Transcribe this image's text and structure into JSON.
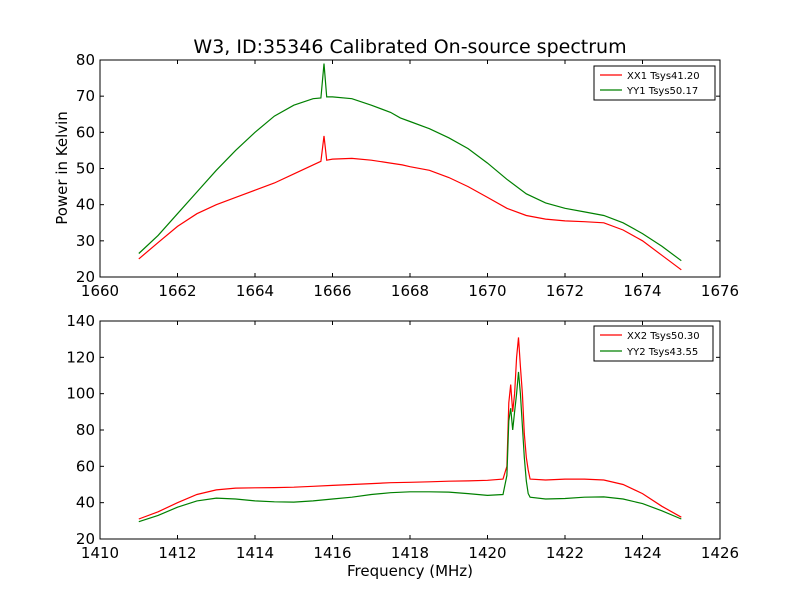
{
  "chart_data": [
    {
      "type": "line",
      "title": "W3, ID:35346 Calibrated On-source spectrum",
      "xlabel": "",
      "ylabel": "Power in Kelvin",
      "xlim": [
        1660,
        1676
      ],
      "ylim": [
        20,
        80
      ],
      "xticks": [
        "1660",
        "1662",
        "1664",
        "1666",
        "1668",
        "1670",
        "1672",
        "1674",
        "1676"
      ],
      "yticks": [
        "20",
        "30",
        "40",
        "50",
        "60",
        "70",
        "80"
      ],
      "legend_position": "top-right",
      "grid": false,
      "series": [
        {
          "name": "XX1 Tsys41.20",
          "color": "#ff0000",
          "points": [
            [
              1661.0,
              25.0
            ],
            [
              1661.5,
              29.5
            ],
            [
              1662.0,
              34.0
            ],
            [
              1662.5,
              37.5
            ],
            [
              1663.0,
              40.0
            ],
            [
              1663.5,
              42.0
            ],
            [
              1664.0,
              44.0
            ],
            [
              1664.5,
              46.0
            ],
            [
              1665.0,
              48.5
            ],
            [
              1665.5,
              51.0
            ],
            [
              1665.7,
              52.0
            ],
            [
              1665.78,
              59.0
            ],
            [
              1665.85,
              52.3
            ],
            [
              1666.0,
              52.6
            ],
            [
              1666.5,
              52.8
            ],
            [
              1667.0,
              52.3
            ],
            [
              1667.5,
              51.5
            ],
            [
              1667.8,
              51.0
            ],
            [
              1668.0,
              50.5
            ],
            [
              1668.5,
              49.5
            ],
            [
              1669.0,
              47.5
            ],
            [
              1669.5,
              45.0
            ],
            [
              1670.0,
              42.0
            ],
            [
              1670.5,
              39.0
            ],
            [
              1671.0,
              37.0
            ],
            [
              1671.5,
              36.0
            ],
            [
              1672.0,
              35.5
            ],
            [
              1672.5,
              35.3
            ],
            [
              1673.0,
              35.0
            ],
            [
              1673.5,
              33.0
            ],
            [
              1674.0,
              30.0
            ],
            [
              1674.5,
              26.0
            ],
            [
              1675.0,
              22.0
            ]
          ]
        },
        {
          "name": "YY1 Tsys50.17",
          "color": "#008000",
          "points": [
            [
              1661.0,
              26.5
            ],
            [
              1661.5,
              31.5
            ],
            [
              1662.0,
              37.5
            ],
            [
              1662.5,
              43.5
            ],
            [
              1663.0,
              49.5
            ],
            [
              1663.5,
              55.0
            ],
            [
              1664.0,
              60.0
            ],
            [
              1664.5,
              64.5
            ],
            [
              1665.0,
              67.5
            ],
            [
              1665.5,
              69.3
            ],
            [
              1665.7,
              69.5
            ],
            [
              1665.78,
              79.0
            ],
            [
              1665.85,
              69.8
            ],
            [
              1666.0,
              69.8
            ],
            [
              1666.5,
              69.3
            ],
            [
              1667.0,
              67.5
            ],
            [
              1667.5,
              65.5
            ],
            [
              1667.75,
              64.0
            ],
            [
              1668.0,
              63.0
            ],
            [
              1668.5,
              61.0
            ],
            [
              1669.0,
              58.5
            ],
            [
              1669.5,
              55.5
            ],
            [
              1670.0,
              51.5
            ],
            [
              1670.5,
              47.0
            ],
            [
              1671.0,
              43.0
            ],
            [
              1671.5,
              40.5
            ],
            [
              1672.0,
              39.0
            ],
            [
              1672.5,
              38.0
            ],
            [
              1673.0,
              37.0
            ],
            [
              1673.5,
              35.0
            ],
            [
              1674.0,
              32.0
            ],
            [
              1674.5,
              28.5
            ],
            [
              1675.0,
              24.5
            ]
          ]
        }
      ]
    },
    {
      "type": "line",
      "title": "",
      "xlabel": "Frequency (MHz)",
      "ylabel": "",
      "xlim": [
        1410,
        1426
      ],
      "ylim": [
        20,
        140
      ],
      "xticks": [
        "1410",
        "1412",
        "1414",
        "1416",
        "1418",
        "1420",
        "1422",
        "1424",
        "1426"
      ],
      "yticks": [
        "20",
        "40",
        "60",
        "80",
        "100",
        "120",
        "140"
      ],
      "legend_position": "top-right",
      "grid": false,
      "series": [
        {
          "name": "XX2 Tsys50.30",
          "color": "#ff0000",
          "points": [
            [
              1411.0,
              31.0
            ],
            [
              1411.5,
              35.0
            ],
            [
              1412.0,
              40.0
            ],
            [
              1412.5,
              44.5
            ],
            [
              1413.0,
              47.0
            ],
            [
              1413.5,
              48.0
            ],
            [
              1414.0,
              48.2
            ],
            [
              1414.5,
              48.3
            ],
            [
              1415.0,
              48.5
            ],
            [
              1415.5,
              49.0
            ],
            [
              1416.0,
              49.5
            ],
            [
              1416.5,
              50.0
            ],
            [
              1417.0,
              50.5
            ],
            [
              1417.5,
              51.0
            ],
            [
              1418.0,
              51.2
            ],
            [
              1418.5,
              51.5
            ],
            [
              1419.0,
              51.8
            ],
            [
              1419.5,
              52.0
            ],
            [
              1420.0,
              52.3
            ],
            [
              1420.4,
              53.0
            ],
            [
              1420.5,
              60.0
            ],
            [
              1420.55,
              95.0
            ],
            [
              1420.6,
              105.0
            ],
            [
              1420.65,
              90.0
            ],
            [
              1420.7,
              100.0
            ],
            [
              1420.75,
              120.0
            ],
            [
              1420.8,
              131.0
            ],
            [
              1420.85,
              115.0
            ],
            [
              1420.9,
              100.0
            ],
            [
              1420.95,
              78.0
            ],
            [
              1421.0,
              65.0
            ],
            [
              1421.05,
              58.0
            ],
            [
              1421.1,
              53.0
            ],
            [
              1421.5,
              52.5
            ],
            [
              1422.0,
              53.0
            ],
            [
              1422.5,
              53.0
            ],
            [
              1423.0,
              52.5
            ],
            [
              1423.5,
              50.0
            ],
            [
              1424.0,
              45.0
            ],
            [
              1424.5,
              38.0
            ],
            [
              1425.0,
              32.0
            ]
          ]
        },
        {
          "name": "YY2 Tsys43.55",
          "color": "#008000",
          "points": [
            [
              1411.0,
              29.5
            ],
            [
              1411.5,
              33.0
            ],
            [
              1412.0,
              37.5
            ],
            [
              1412.5,
              41.0
            ],
            [
              1413.0,
              42.5
            ],
            [
              1413.5,
              42.0
            ],
            [
              1414.0,
              41.0
            ],
            [
              1414.5,
              40.5
            ],
            [
              1415.0,
              40.3
            ],
            [
              1415.5,
              41.0
            ],
            [
              1416.0,
              42.0
            ],
            [
              1416.5,
              43.0
            ],
            [
              1417.0,
              44.5
            ],
            [
              1417.5,
              45.5
            ],
            [
              1418.0,
              46.0
            ],
            [
              1418.5,
              46.0
            ],
            [
              1419.0,
              45.8
            ],
            [
              1419.5,
              45.0
            ],
            [
              1420.0,
              44.0
            ],
            [
              1420.4,
              44.5
            ],
            [
              1420.5,
              55.0
            ],
            [
              1420.55,
              85.0
            ],
            [
              1420.6,
              92.0
            ],
            [
              1420.65,
              80.0
            ],
            [
              1420.7,
              90.0
            ],
            [
              1420.75,
              100.0
            ],
            [
              1420.8,
              112.0
            ],
            [
              1420.85,
              100.0
            ],
            [
              1420.9,
              82.0
            ],
            [
              1420.95,
              65.0
            ],
            [
              1421.0,
              52.0
            ],
            [
              1421.05,
              45.0
            ],
            [
              1421.1,
              43.0
            ],
            [
              1421.5,
              42.0
            ],
            [
              1422.0,
              42.3
            ],
            [
              1422.5,
              43.0
            ],
            [
              1423.0,
              43.2
            ],
            [
              1423.5,
              42.0
            ],
            [
              1424.0,
              39.5
            ],
            [
              1424.5,
              35.5
            ],
            [
              1425.0,
              31.0
            ]
          ]
        }
      ]
    }
  ]
}
